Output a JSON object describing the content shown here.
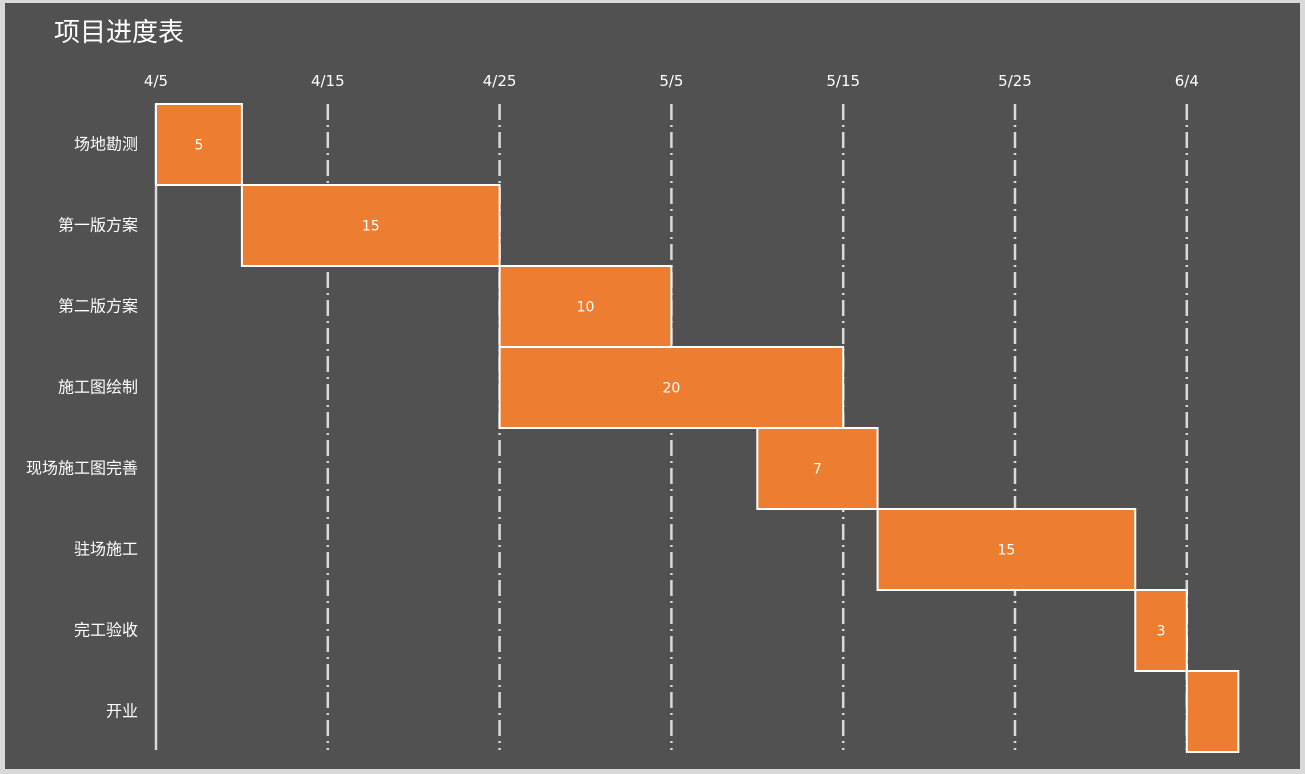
{
  "chart_data": {
    "type": "bar",
    "orientation": "horizontal-gantt",
    "title": "项目进度表",
    "x_axis": {
      "ticks": [
        "4/5",
        "4/15",
        "4/25",
        "5/5",
        "5/15",
        "5/25",
        "6/4"
      ],
      "min": 0,
      "max": 63,
      "tick_step": 10,
      "gridlines": "dash-dot"
    },
    "categories": [
      "场地勘测",
      "第一版方案",
      "第二版方案",
      "施工图绘制",
      "现场施工图完善",
      "驻场施工",
      "完工验收",
      "开业"
    ],
    "series": [
      {
        "start_offset_days": [
          0,
          5,
          20,
          20,
          35,
          42,
          57,
          60
        ],
        "durations": [
          5,
          15,
          10,
          20,
          7,
          15,
          3,
          3
        ],
        "labels": [
          "5",
          "15",
          "10",
          "20",
          "7",
          "15",
          "3",
          ""
        ]
      }
    ],
    "colors": {
      "plot_background": "#515151",
      "outer_background": "#d9d9d9",
      "bar_fill": "#ed7d31",
      "bar_stroke": "#ffffff",
      "grid": "#d9d9d9",
      "text": "#ffffff"
    }
  }
}
